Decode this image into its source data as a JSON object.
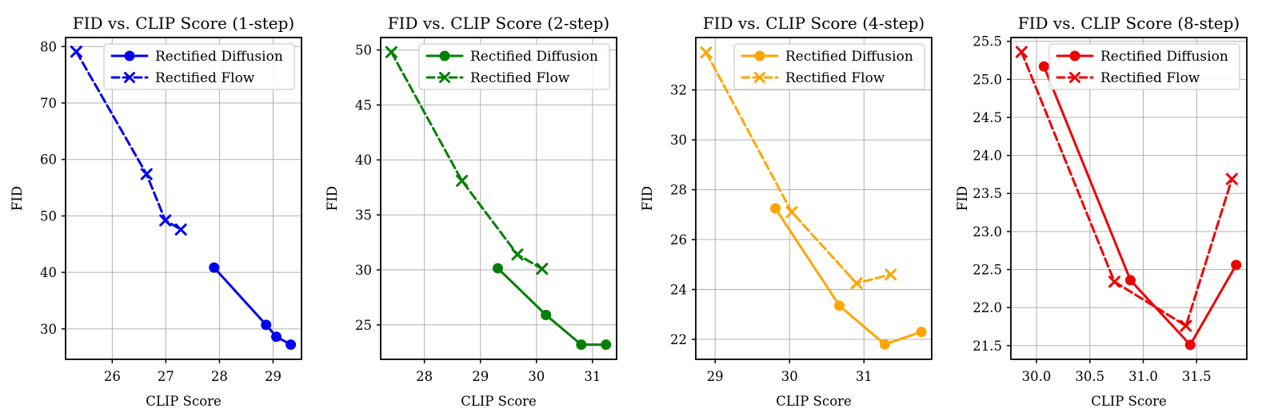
{
  "figure": {
    "background": "#ffffff",
    "grid_color": "#b0b0b0",
    "axis_color": "#000000",
    "legend_face": "#ffffff",
    "legend_edge": "#cccccc"
  },
  "legend": {
    "diffusion_label": "Rectified Diffusion",
    "flow_label": "Rectified Flow",
    "position": "upper right"
  },
  "chart_data": [
    {
      "type": "line",
      "title": "FID vs. CLIP Score (1-step)",
      "xlabel": "CLIP Score",
      "ylabel": "FID",
      "color": "#0000ee",
      "grid": true,
      "xlim": [
        25.13,
        29.53
      ],
      "ylim": [
        24.6,
        81.6
      ],
      "xticks": [
        26,
        27,
        28,
        29
      ],
      "xtick_labels": [
        "26",
        "27",
        "28",
        "29"
      ],
      "yticks": [
        30,
        40,
        50,
        60,
        70,
        80
      ],
      "ytick_labels": [
        "30",
        "40",
        "50",
        "60",
        "70",
        "80"
      ],
      "series": [
        {
          "name": "Rectified Diffusion",
          "line": "solid",
          "marker": "circle",
          "points": [
            [
              27.9,
              40.85
            ],
            [
              28.87,
              30.7
            ],
            [
              29.06,
              28.6
            ],
            [
              29.33,
              27.2
            ]
          ]
        },
        {
          "name": "Rectified Flow",
          "line": "dashed",
          "marker": "x",
          "points": [
            [
              25.33,
              79.1
            ],
            [
              26.64,
              57.4
            ],
            [
              26.99,
              49.2
            ],
            [
              27.28,
              47.6
            ]
          ]
        }
      ]
    },
    {
      "type": "line",
      "title": "FID vs. CLIP Score (2-step)",
      "xlabel": "CLIP Score",
      "ylabel": "FID",
      "color": "#008000",
      "grid": true,
      "xlim": [
        27.22,
        31.43
      ],
      "ylim": [
        21.87,
        51.13
      ],
      "xticks": [
        28,
        29,
        30,
        31
      ],
      "xtick_labels": [
        "28",
        "29",
        "30",
        "31"
      ],
      "yticks": [
        25,
        30,
        35,
        40,
        45,
        50
      ],
      "ytick_labels": [
        "25",
        "30",
        "35",
        "40",
        "45",
        "50"
      ],
      "series": [
        {
          "name": "Rectified Diffusion",
          "line": "solid",
          "marker": "circle",
          "points": [
            [
              29.31,
              30.15
            ],
            [
              30.17,
              25.9
            ],
            [
              30.8,
              23.2
            ],
            [
              31.24,
              23.2
            ]
          ]
        },
        {
          "name": "Rectified Flow",
          "line": "dashed",
          "marker": "x",
          "points": [
            [
              27.41,
              49.8
            ],
            [
              28.67,
              38.1
            ],
            [
              29.66,
              31.4
            ],
            [
              30.1,
              30.1
            ]
          ]
        }
      ]
    },
    {
      "type": "line",
      "title": "FID vs. CLIP Score (4-step)",
      "xlabel": "CLIP Score",
      "ylabel": "FID",
      "color": "#ffa500",
      "grid": true,
      "xlim": [
        28.74,
        31.91
      ],
      "ylim": [
        21.2,
        34.1
      ],
      "xticks": [
        29,
        30,
        31
      ],
      "xtick_labels": [
        "29",
        "30",
        "31"
      ],
      "yticks": [
        22,
        24,
        26,
        28,
        30,
        32
      ],
      "ytick_labels": [
        "22",
        "24",
        "26",
        "28",
        "30",
        "32"
      ],
      "series": [
        {
          "name": "Rectified Diffusion",
          "line": "solid",
          "marker": "circle",
          "points": [
            [
              29.81,
              27.25
            ],
            [
              30.67,
              23.35
            ],
            [
              31.28,
              21.8
            ],
            [
              31.77,
              22.3
            ]
          ]
        },
        {
          "name": "Rectified Flow",
          "line": "dashed",
          "marker": "x",
          "points": [
            [
              28.88,
              33.5
            ],
            [
              30.03,
              27.1
            ],
            [
              30.9,
              24.25
            ],
            [
              31.36,
              24.6
            ]
          ]
        }
      ]
    },
    {
      "type": "line",
      "title": "FID vs. CLIP Score (8-step)",
      "xlabel": "CLIP Score",
      "ylabel": "FID",
      "color": "#ee0000",
      "grid": true,
      "xlim": [
        29.76,
        31.97
      ],
      "ylim": [
        21.32,
        25.55
      ],
      "xticks": [
        30.0,
        30.5,
        31.0,
        31.5
      ],
      "xtick_labels": [
        "30.0",
        "30.5",
        "31.0",
        "31.5"
      ],
      "yticks": [
        21.5,
        22.0,
        22.5,
        23.0,
        23.5,
        24.0,
        24.5,
        25.0,
        25.5
      ],
      "ytick_labels": [
        "21.5",
        "22.0",
        "22.5",
        "23.0",
        "23.5",
        "24.0",
        "24.5",
        "25.0",
        "25.5"
      ],
      "series": [
        {
          "name": "Rectified Diffusion",
          "line": "solid",
          "marker": "circle",
          "points": [
            [
              30.07,
              25.17
            ],
            [
              30.88,
              22.36
            ],
            [
              31.44,
              21.51
            ],
            [
              31.87,
              22.56
            ]
          ]
        },
        {
          "name": "Rectified Flow",
          "line": "dashed",
          "marker": "x",
          "points": [
            [
              29.86,
              25.36
            ],
            [
              30.73,
              22.34
            ],
            [
              31.4,
              21.76
            ],
            [
              31.83,
              23.69
            ]
          ]
        }
      ]
    }
  ]
}
